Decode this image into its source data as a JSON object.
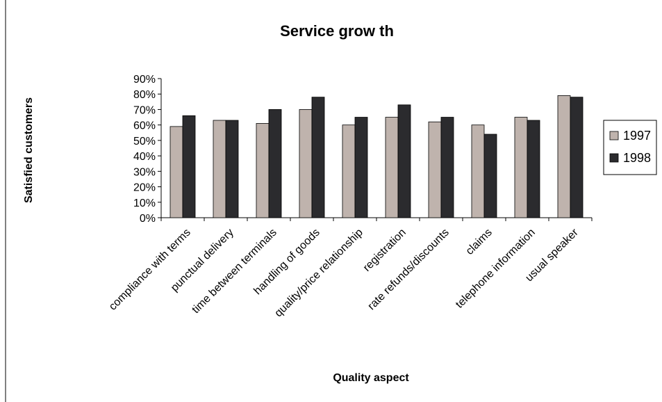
{
  "chart_data": {
    "type": "bar",
    "title": "Service grow th",
    "xlabel": "Quality aspect",
    "ylabel": "Satisfied customers",
    "ylim": [
      0,
      90
    ],
    "yticks": [
      "0%",
      "10%",
      "20%",
      "30%",
      "40%",
      "50%",
      "60%",
      "70%",
      "80%",
      "90%"
    ],
    "grid": false,
    "legend_position": "right",
    "categories": [
      "compliance with terms",
      "punctual delivery",
      "time between terminals",
      "handling of goods",
      "quality/price relationship",
      "registration",
      "rate refunds/discounts",
      "claims",
      "telephone information",
      "usual speaker"
    ],
    "series": [
      {
        "name": "1997",
        "color": "#bfb3ad",
        "values": [
          59,
          63,
          61,
          70,
          60,
          65,
          62,
          60,
          65,
          79
        ]
      },
      {
        "name": "1998",
        "color": "#2b2b2e",
        "values": [
          66,
          63,
          70,
          78,
          65,
          73,
          65,
          54,
          63,
          78
        ]
      }
    ]
  }
}
